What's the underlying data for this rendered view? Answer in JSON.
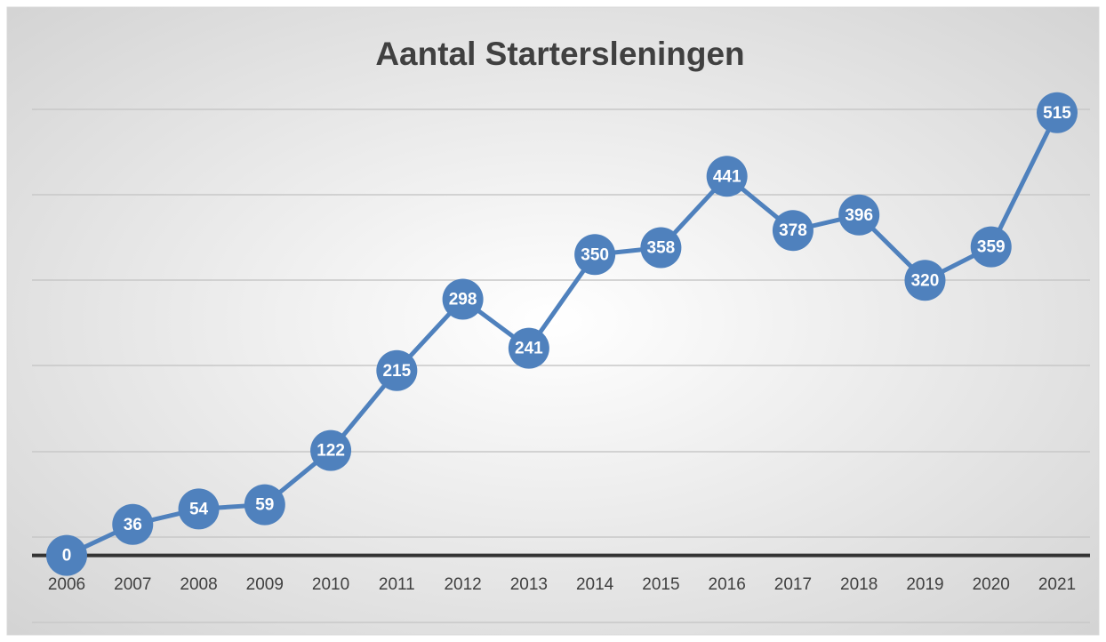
{
  "chart_data": {
    "type": "line",
    "title": "Aantal Startersleningen",
    "categories": [
      "2006",
      "2007",
      "2008",
      "2009",
      "2010",
      "2011",
      "2012",
      "2013",
      "2014",
      "2015",
      "2016",
      "2017",
      "2018",
      "2019",
      "2020",
      "2021"
    ],
    "values": [
      0,
      36,
      54,
      59,
      122,
      215,
      298,
      241,
      350,
      358,
      441,
      378,
      396,
      320,
      359,
      515
    ],
    "color": "#4f81bd",
    "ylim": [
      -78,
      522
    ]
  }
}
